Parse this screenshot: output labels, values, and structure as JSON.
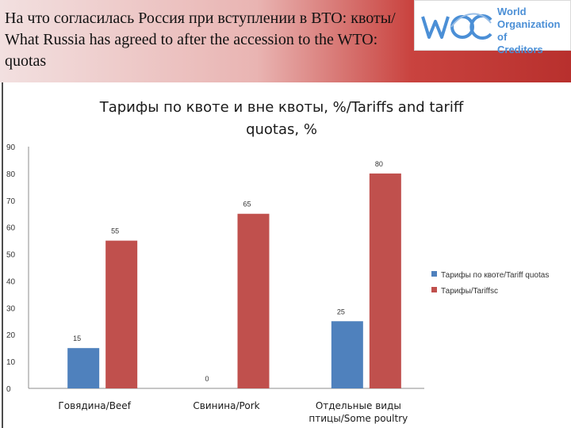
{
  "slide": {
    "title": "На что согласилась Россия при вступлении в ВТО: квоты/ What Russia has agreed to after the accession to the WTO: quotas",
    "logo": {
      "mark": "WOC",
      "text_lines": [
        "World",
        "Organization of",
        "Creditors"
      ]
    }
  },
  "colors": {
    "quota": "#4f81bd",
    "tariff": "#c0504d",
    "axis": "#8c8c8c"
  },
  "chart_data": {
    "type": "bar",
    "title_lines": [
      "Тарифы по квоте и вне квоты, %/Tariffs and tariff",
      "quotas, %"
    ],
    "categories": [
      [
        "Говядина/Beef"
      ],
      [
        "Свинина/Pork"
      ],
      [
        "Отдельные виды",
        "птицы/Some poultry"
      ]
    ],
    "series": [
      {
        "name": "Тарифы по квоте/Tariff quotas",
        "values": [
          15,
          0,
          25
        ],
        "labels": [
          "15",
          "0",
          "25"
        ]
      },
      {
        "name": "Тарифы/Tariffsc",
        "values": [
          55,
          65,
          80
        ],
        "labels": [
          "55",
          "65",
          "80"
        ]
      }
    ],
    "ylim": [
      0,
      90
    ],
    "yticks": [
      0,
      10,
      20,
      30,
      40,
      50,
      60,
      70,
      80,
      90
    ],
    "grid": false,
    "legend_position": "right"
  }
}
